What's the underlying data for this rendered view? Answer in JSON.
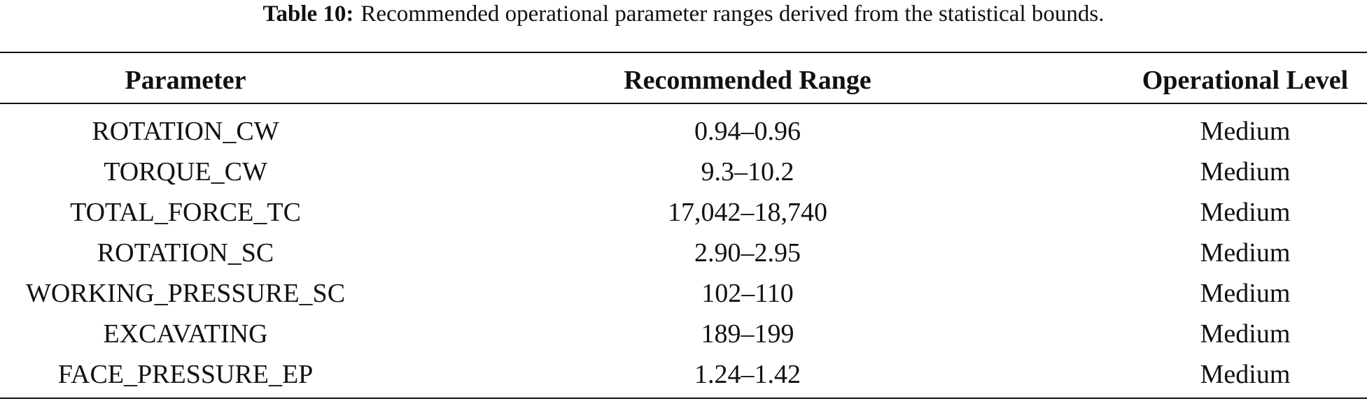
{
  "caption": {
    "label": "Table 10:",
    "text": "Recommended operational parameter ranges derived from the statistical bounds."
  },
  "table": {
    "header": [
      "Parameter",
      "Recommended Range",
      "Operational Level"
    ],
    "rows": [
      [
        "ROTATION_CW",
        "0.94–0.96",
        "Medium"
      ],
      [
        "TORQUE_CW",
        "9.3–10.2",
        "Medium"
      ],
      [
        "TOTAL_FORCE_TC",
        "17,042–18,740",
        "Medium"
      ],
      [
        "ROTATION_SC",
        "2.90–2.95",
        "Medium"
      ],
      [
        "WORKING_PRESSURE_SC",
        "102–110",
        "Medium"
      ],
      [
        "EXCAVATING",
        "189–199",
        "Medium"
      ],
      [
        "FACE_PRESSURE_EP",
        "1.24–1.42",
        "Medium"
      ]
    ]
  }
}
